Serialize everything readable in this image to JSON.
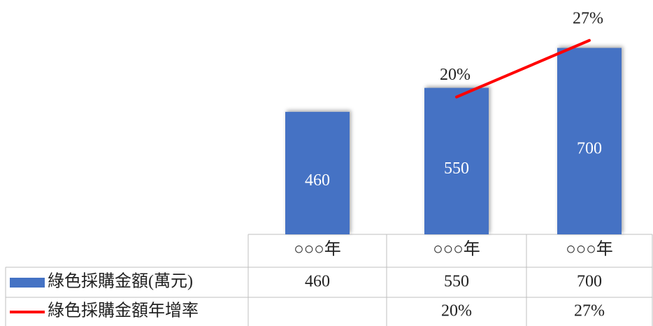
{
  "chart_data": {
    "type": "bar",
    "categories": [
      "○○○年",
      "○○○年",
      "○○○年"
    ],
    "ylim": [
      0,
      880
    ],
    "y2lim": [
      3,
      32
    ],
    "series": [
      {
        "name": "綠色採購金額(萬元)",
        "type": "bar",
        "color": "#4472c4",
        "values": [
          460,
          550,
          700
        ]
      },
      {
        "name": "綠色採購金額年增率",
        "type": "line",
        "axis": "y2",
        "color": "#ff0000",
        "values": [
          null,
          20,
          27
        ],
        "value_labels": [
          null,
          "20%",
          "27%"
        ]
      }
    ]
  }
}
